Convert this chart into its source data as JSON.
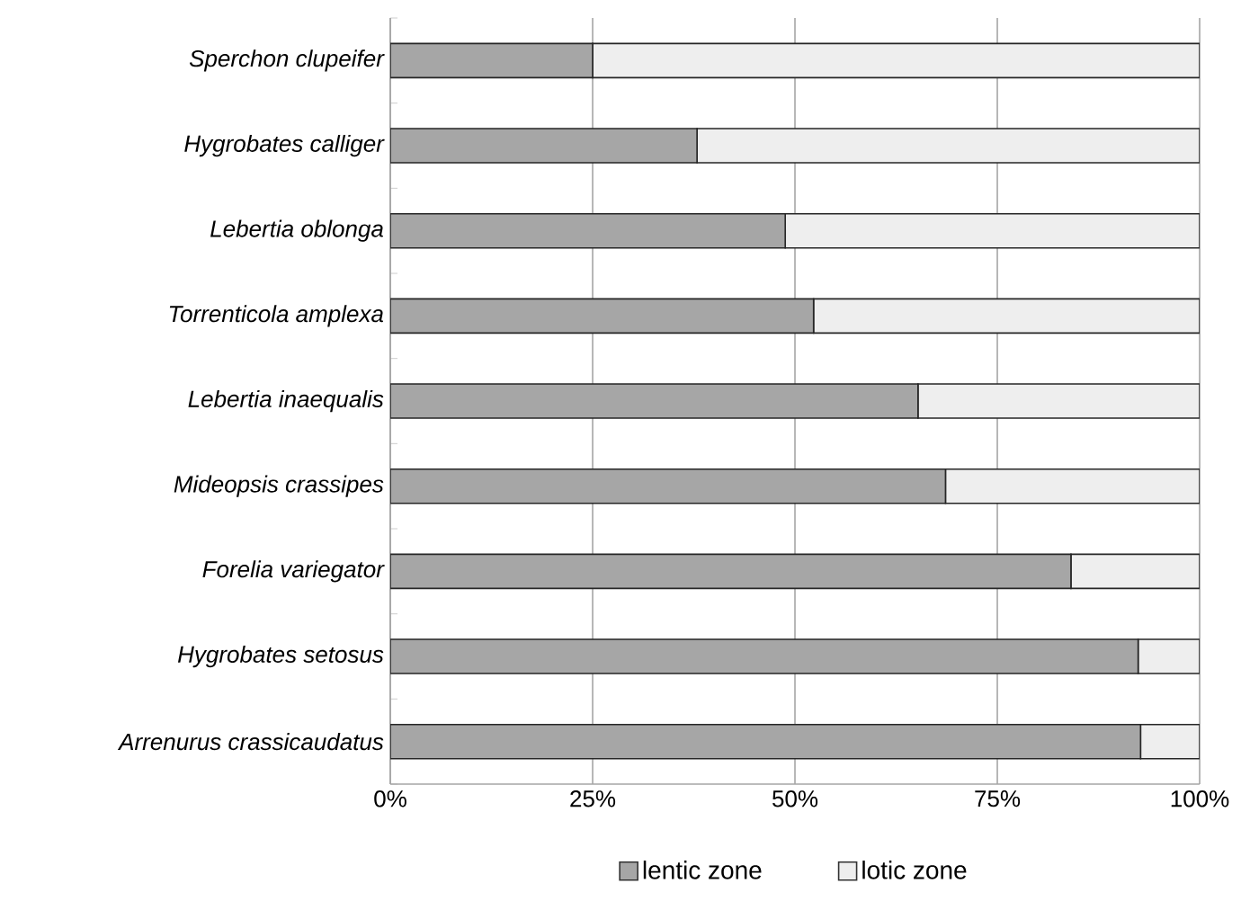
{
  "chart_data": {
    "type": "bar",
    "orientation": "horizontal",
    "stacked": true,
    "categories": [
      "Sperchon clupeifer",
      "Hygrobates calliger",
      "Lebertia oblonga",
      "Torrenticola amplexa",
      "Lebertia inaequalis",
      "Mideopsis crassipes",
      "Forelia variegator",
      "Hygrobates setosus",
      "Arrenurus crassicaudatus"
    ],
    "series": [
      {
        "name": "lentic zone",
        "color": "#a6a6a6",
        "values": [
          25.0,
          37.9,
          48.8,
          52.3,
          65.2,
          68.6,
          84.1,
          92.4,
          92.7
        ]
      },
      {
        "name": "lotic zone",
        "color": "#eeeeee",
        "values": [
          75.0,
          62.1,
          51.2,
          47.7,
          34.8,
          31.4,
          15.9,
          7.6,
          7.3
        ]
      }
    ],
    "xlim": [
      0,
      100
    ],
    "xticks": [
      {
        "value": 0,
        "label": "0%"
      },
      {
        "value": 25,
        "label": "25%"
      },
      {
        "value": 50,
        "label": "50%"
      },
      {
        "value": 75,
        "label": "75%"
      },
      {
        "value": 100,
        "label": "100%"
      }
    ],
    "grid": "x",
    "legend": "bottom"
  }
}
